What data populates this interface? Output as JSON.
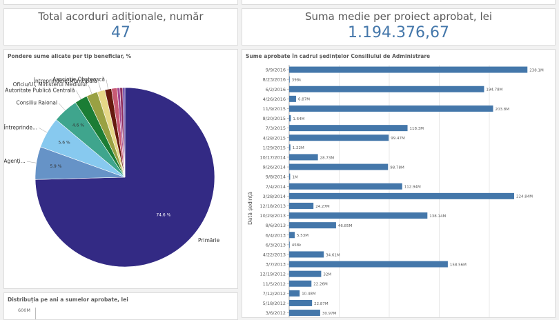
{
  "kpi_left": {
    "title": "Total acorduri adiționale, număr",
    "value": "47"
  },
  "kpi_right": {
    "title": "Suma medie per proiect aprobat, lei",
    "value": "1.194.376,67"
  },
  "colors": {
    "kpi_value": "#4477aa",
    "bar": "#4477aa",
    "background": "#f2f2f2"
  },
  "chart_data": [
    {
      "type": "pie",
      "title": "Pondere sume alicate per tip beneficiar, %",
      "slices": [
        {
          "label": "Primărie",
          "value": 74.6,
          "pct_label": "74.6 %",
          "color": "#332a84"
        },
        {
          "label": "Agenți...",
          "value": 5.9,
          "pct_label": "5.9 %",
          "color": "#6693c7"
        },
        {
          "label": "Întreprinde...",
          "value": 5.6,
          "pct_label": "5.6 %",
          "color": "#87c9ef"
        },
        {
          "label": "Consiliu Raional",
          "value": 4.6,
          "pct_label": "4.6 %",
          "color": "#3fa58d"
        },
        {
          "label": "Autoritate Publică Centrală",
          "value": 2.3,
          "pct_label": "",
          "color": "#1b7d35"
        },
        {
          "label": "Oficiu/UI, Ministerul Mediului",
          "value": 2.0,
          "pct_label": "",
          "color": "#99a143"
        },
        {
          "label": "Întreprindere Municipală",
          "value": 1.4,
          "pct_label": "",
          "color": "#e6d887"
        },
        {
          "label": "Asociație Obștească",
          "value": 1.2,
          "pct_label": "",
          "color": "#661a0f"
        },
        {
          "label": "",
          "value": 1.0,
          "pct_label": "",
          "color": "#c85a74"
        },
        {
          "label": "",
          "value": 0.5,
          "pct_label": "",
          "color": "#a1468f"
        },
        {
          "label": "",
          "value": 0.5,
          "pct_label": "",
          "color": "#8f2f5d"
        },
        {
          "label": "",
          "value": 0.4,
          "pct_label": "",
          "color": "#6b4aa8"
        }
      ]
    },
    {
      "type": "bar",
      "orientation": "horizontal",
      "title": "Sume aprobate în cadrul ședințelor Consiliului de Administrare",
      "ylabel": "Dată ședință",
      "xlim": [
        0,
        240000000
      ],
      "categories": [
        "9/9/2016",
        "8/23/2016",
        "6/2/2016",
        "4/26/2016",
        "11/9/2015",
        "8/20/2015",
        "7/3/2015",
        "4/28/2015",
        "1/29/2015",
        "10/17/2014",
        "9/26/2014",
        "9/8/2014",
        "7/4/2014",
        "3/28/2014",
        "12/18/2013",
        "10/29/2013",
        "8/6/2013",
        "6/4/2013",
        "6/3/2013",
        "4/22/2013",
        "3/7/2013",
        "12/19/2012",
        "11/5/2012",
        "7/12/2012",
        "5/18/2012",
        "3/6/2012"
      ],
      "values": [
        238100000,
        398000,
        194780000,
        6870000,
        203800000,
        1640000,
        118300000,
        99470000,
        1220000,
        28730000,
        98780000,
        1000000,
        112940000,
        224840000,
        24270000,
        138140000,
        46850000,
        5530000,
        458000,
        34610000,
        158560000,
        32000000,
        22260000,
        10480000,
        22870000,
        30970000
      ],
      "value_labels": [
        "238.1M",
        "398k",
        "194.78M",
        "6.87M",
        "203.8M",
        "1.64M",
        "118.3M",
        "99.47M",
        "1.22M",
        "28.73M",
        "98.78M",
        "1M",
        "112.94M",
        "224.84M",
        "24.27M",
        "138.14M",
        "46.85M",
        "5.53M",
        "458k",
        "34.61M",
        "158.56M",
        "32M",
        "22.26M",
        "10.48M",
        "22.87M",
        "30.97M"
      ]
    },
    {
      "type": "bar",
      "title": "Distribuția pe ani a sumelor aprobate, lei",
      "y_ticks": [
        "600M"
      ]
    }
  ]
}
